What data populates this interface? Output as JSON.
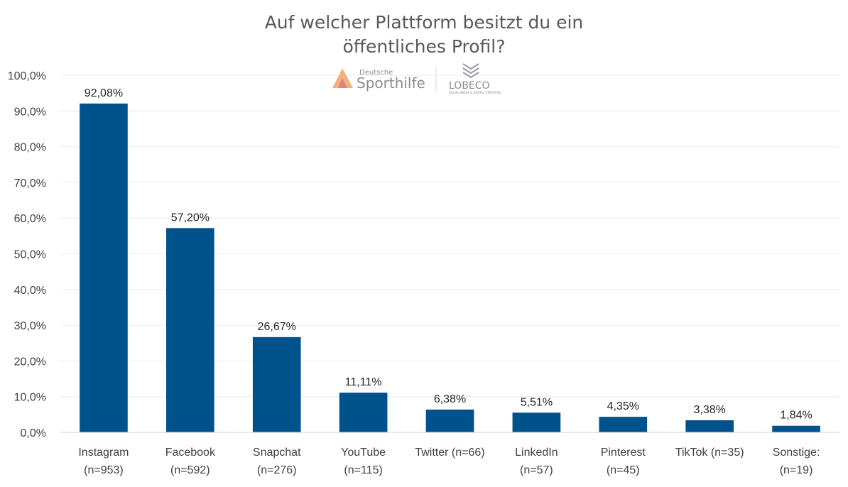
{
  "chart_data": {
    "type": "bar",
    "title": [
      "Auf welcher Plattform besitzt du ein",
      "öffentliches Profil?"
    ],
    "categories": [
      [
        "Instagram",
        "(n=953)"
      ],
      [
        "Facebook",
        "(n=592)"
      ],
      [
        "Snapchat",
        "(n=276)"
      ],
      [
        "YouTube",
        "(n=115)"
      ],
      [
        "Twitter (n=66)"
      ],
      [
        "LinkedIn",
        "(n=57)"
      ],
      [
        "Pinterest",
        "(n=45)"
      ],
      [
        "TikTok (n=35)"
      ],
      [
        "Sonstige:",
        "(n=19)"
      ]
    ],
    "values": [
      92.08,
      57.2,
      26.67,
      11.11,
      6.38,
      5.51,
      4.35,
      3.38,
      1.84
    ],
    "data_labels": [
      "92,08%",
      "57,20%",
      "26,67%",
      "11,11%",
      "6,38%",
      "5,51%",
      "4,35%",
      "3,38%",
      "1,84%"
    ],
    "ylim": [
      0,
      100
    ],
    "yticks": [
      "0,0%",
      "10,0%",
      "20,0%",
      "30,0%",
      "40,0%",
      "50,0%",
      "60,0%",
      "70,0%",
      "80,0%",
      "90,0%",
      "100,0%"
    ],
    "grid": true,
    "bar_color": "#00528c",
    "xlabel": "",
    "ylabel": ""
  },
  "watermark": {
    "logo1_small": "Deutsche",
    "logo1_big": "Sporthilfe",
    "logo2": "LOBECO",
    "logo2_sub": "SOCIAL MEDIA & DIGITAL STRATEGIE"
  }
}
